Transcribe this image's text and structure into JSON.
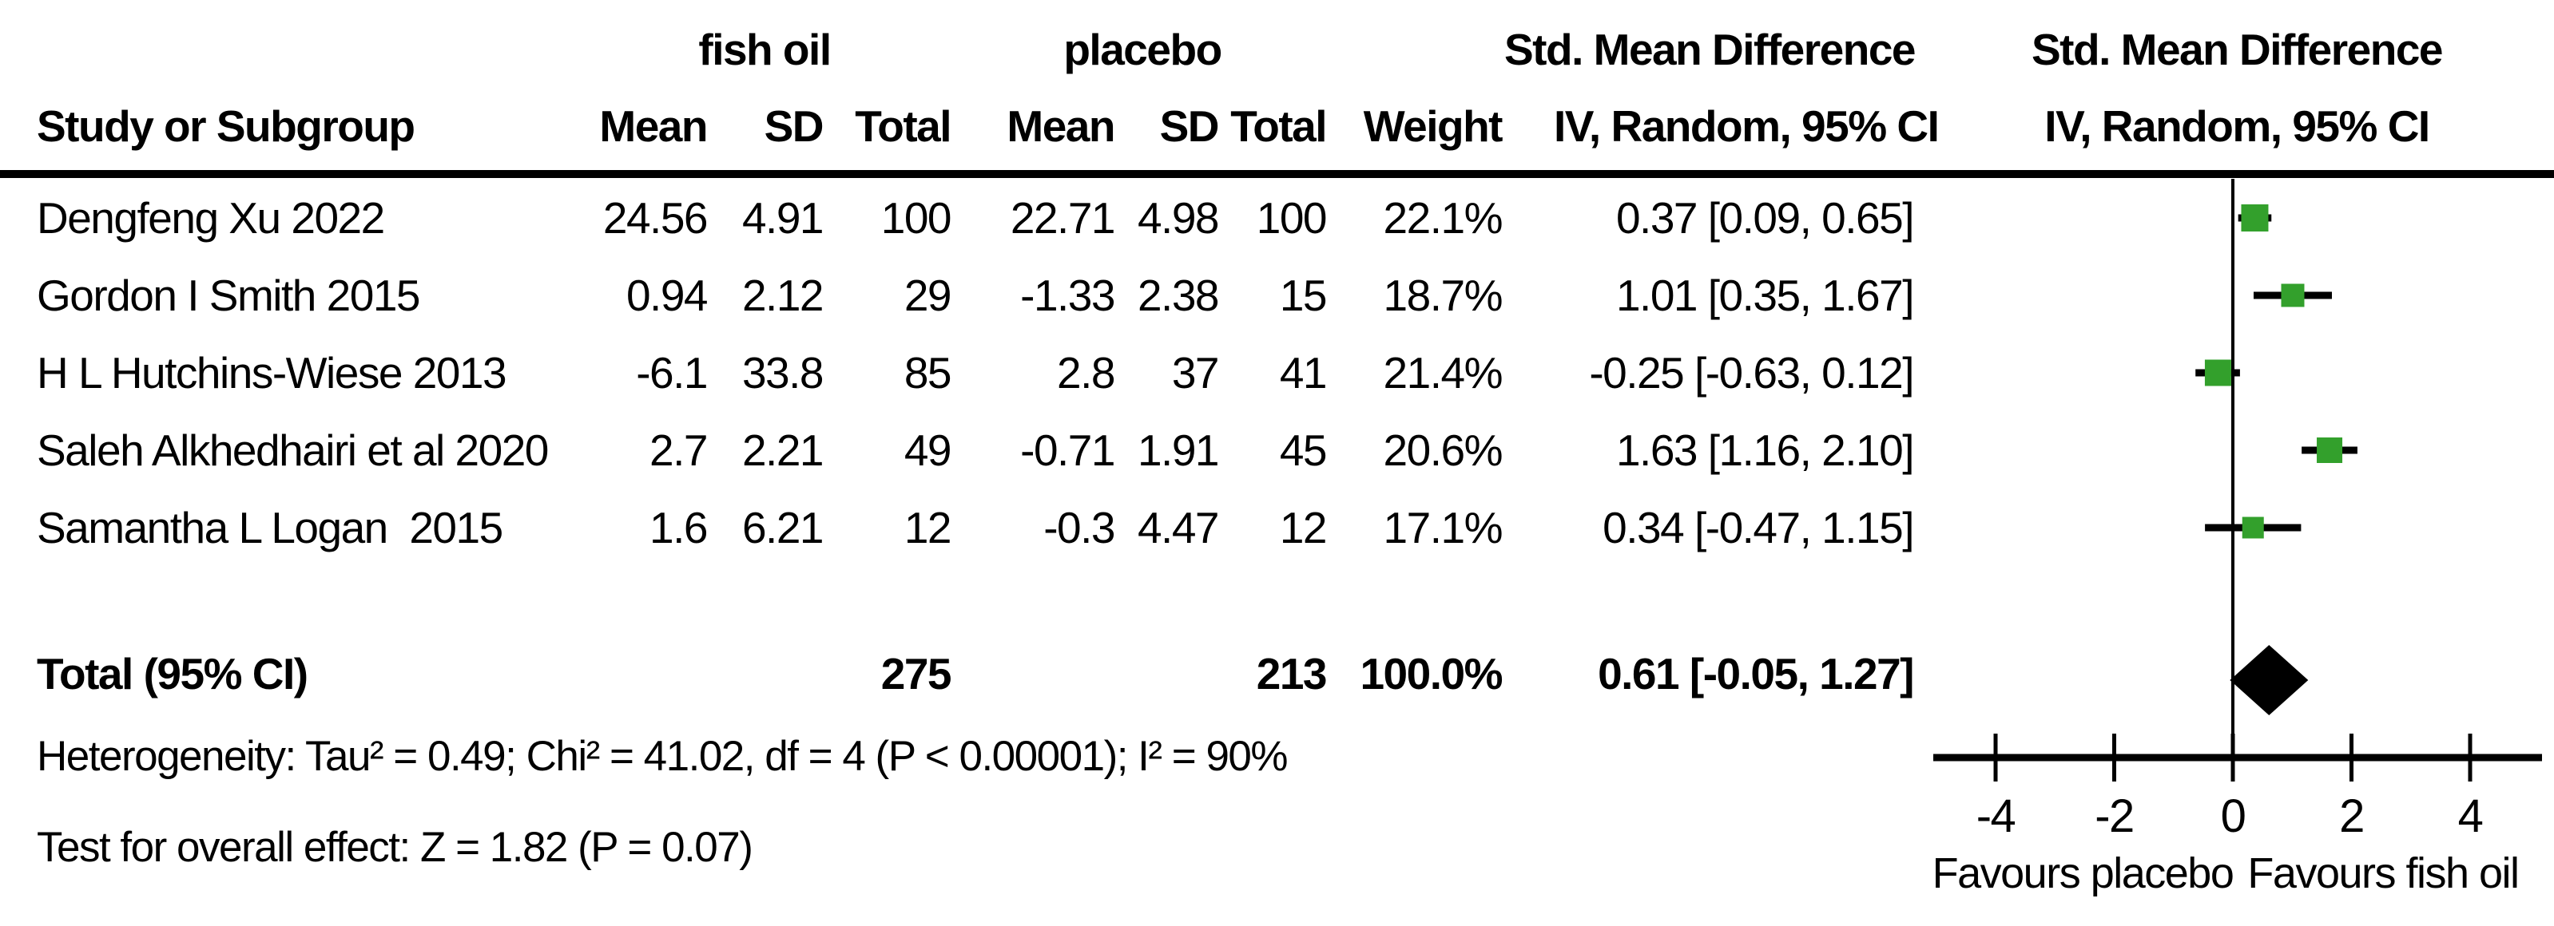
{
  "table": {
    "group1_label": "fish oil",
    "group2_label": "placebo",
    "smd_header": "Std. Mean Difference",
    "plot_header_line1": "Std. Mean Difference",
    "plot_header_line2": "IV, Random, 95% CI",
    "header": {
      "study": "Study or Subgroup",
      "mean": "Mean",
      "sd": "SD",
      "total": "Total",
      "weight": "Weight",
      "iv_label": "IV, Random, 95% CI"
    },
    "rows": [
      {
        "study": "Dengfeng Xu 2022",
        "mean1": "24.56",
        "sd1": "4.91",
        "total1": "100",
        "mean2": "22.71",
        "sd2": "4.98",
        "total2": "100",
        "weight": "22.1%",
        "ci_text": "0.37 [0.09, 0.65]"
      },
      {
        "study": "Gordon I Smith 2015",
        "mean1": "0.94",
        "sd1": "2.12",
        "total1": "29",
        "mean2": "-1.33",
        "sd2": "2.38",
        "total2": "15",
        "weight": "18.7%",
        "ci_text": "1.01 [0.35, 1.67]"
      },
      {
        "study": "H L Hutchins-Wiese 2013",
        "mean1": "-6.1",
        "sd1": "33.8",
        "total1": "85",
        "mean2": "2.8",
        "sd2": "37",
        "total2": "41",
        "weight": "21.4%",
        "ci_text": "-0.25 [-0.63, 0.12]"
      },
      {
        "study": "Saleh Alkhedhairi et al 2020",
        "mean1": "2.7",
        "sd1": "2.21",
        "total1": "49",
        "mean2": "-0.71",
        "sd2": "1.91",
        "total2": "45",
        "weight": "20.6%",
        "ci_text": "1.63 [1.16, 2.10]"
      },
      {
        "study": "Samantha L Logan  2015",
        "mean1": "1.6",
        "sd1": "6.21",
        "total1": "12",
        "mean2": "-0.3",
        "sd2": "4.47",
        "total2": "12",
        "weight": "17.1%",
        "ci_text": "0.34 [-0.47, 1.15]"
      }
    ],
    "total": {
      "label": "Total (95% CI)",
      "total1": "275",
      "total2": "213",
      "weight": "100.0%",
      "ci_text": "0.61 [-0.05, 1.27]"
    },
    "heterogeneity": "Heterogeneity: Tau² = 0.49; Chi² = 41.02, df = 4 (P < 0.00001); I² = 90%",
    "overall_effect": "Test for overall effect: Z = 1.82 (P = 0.07)"
  },
  "chart_data": {
    "type": "forest",
    "title": "Std. Mean Difference, IV, Random, 95% CI",
    "studies": [
      "Dengfeng Xu 2022",
      "Gordon I Smith 2015",
      "H L Hutchins-Wiese 2013",
      "Saleh Alkhedhairi et al 2020",
      "Samantha L Logan 2015"
    ],
    "estimates": [
      0.37,
      1.01,
      -0.25,
      1.63,
      0.34
    ],
    "ci_low": [
      0.09,
      0.35,
      -0.63,
      1.16,
      -0.47
    ],
    "ci_high": [
      0.65,
      1.67,
      0.12,
      2.1,
      1.15
    ],
    "weights_pct": [
      22.1,
      18.7,
      21.4,
      20.6,
      17.1
    ],
    "total": {
      "estimate": 0.61,
      "ci_low": -0.05,
      "ci_high": 1.27,
      "weight_pct": 100.0
    },
    "xticks": [
      "-4",
      "-2",
      "0",
      "2",
      "4"
    ],
    "xtick_values": [
      -4,
      -2,
      0,
      2,
      4
    ],
    "xlim": [
      -5,
      5.2
    ],
    "x_axis_left_label": "Favours placebo",
    "x_axis_right_label": "Favours fish oil",
    "marker_color": "#33a02c",
    "diamond_color": "#000000",
    "line_color": "#000000",
    "grid": false,
    "legend": false
  }
}
